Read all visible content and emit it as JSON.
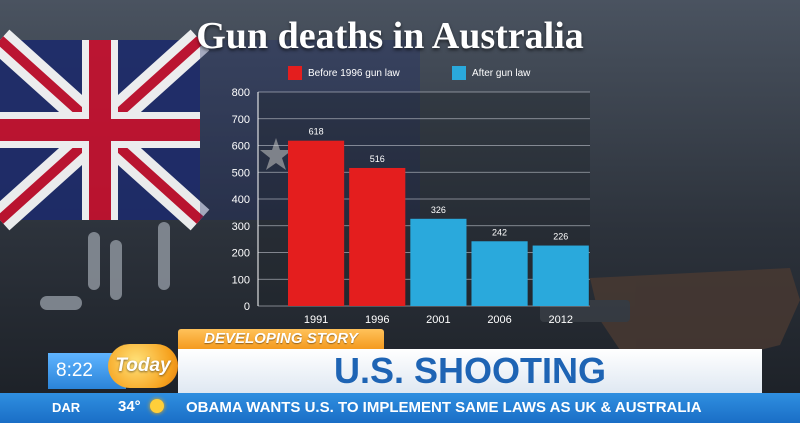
{
  "chart_data": {
    "type": "bar",
    "title": "Gun deaths in Australia",
    "categories": [
      "1991",
      "1996",
      "2001",
      "2006",
      "2012"
    ],
    "values": [
      618,
      516,
      326,
      242,
      226
    ],
    "data_labels": [
      "618",
      "516",
      "326",
      "242",
      "226"
    ],
    "bar_colors": [
      "#e41e1e",
      "#e41e1e",
      "#2aa9dc",
      "#2aa9dc",
      "#2aa9dc"
    ],
    "legend": [
      {
        "label": "Before 1996 gun law",
        "color": "#e41e1e"
      },
      {
        "label": "After gun law",
        "color": "#2aa9dc"
      }
    ],
    "legend_position": "top",
    "ylim": [
      0,
      800
    ],
    "yticks": [
      0,
      100,
      200,
      300,
      400,
      500,
      600,
      700,
      800
    ],
    "grid": true
  },
  "ticker": {
    "time": "8:22",
    "logo": "Today",
    "city": "DAR",
    "temperature": "34°",
    "banner": "DEVELOPING STORY",
    "headline": "U.S. SHOOTING",
    "subheadline": "OBAMA WANTS U.S. TO IMPLEMENT SAME LAWS AS UK & AUSTRALIA"
  },
  "colors": {
    "background": "#2b3038",
    "accent_orange": "#f49a1f",
    "headline_blue": "#1e64b4",
    "ticker_blue": "#1a6ec6"
  },
  "icons": {
    "weather": "sun-icon"
  }
}
